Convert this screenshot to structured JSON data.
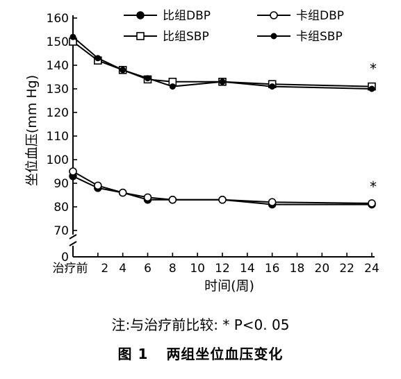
{
  "chart_data": {
    "type": "line",
    "xlabel": "时间(周)",
    "ylabel": "坐位血压(mm Hg)",
    "x_tick_labels": [
      "治疗前",
      "2",
      "4",
      "6",
      "8",
      "10",
      "12",
      "14",
      "16",
      "18",
      "20",
      "22",
      "24"
    ],
    "y_tick_labels": [
      "0",
      "70",
      "80",
      "90",
      "100",
      "110",
      "120",
      "130",
      "140",
      "150",
      "160"
    ],
    "ylim": [
      0,
      160
    ],
    "y_axis_break": [
      0,
      65
    ],
    "grid": false,
    "legend_position": "top-right",
    "x": [
      0,
      2,
      4,
      6,
      8,
      12,
      16,
      24
    ],
    "series": [
      {
        "name": "比组DBP",
        "marker": "filled-circle",
        "values": [
          93,
          88,
          86,
          83,
          83,
          83,
          81,
          81
        ]
      },
      {
        "name": "卡组DBP",
        "marker": "open-circle",
        "values": [
          95,
          89,
          86,
          84,
          83,
          83,
          82,
          81.5
        ]
      },
      {
        "name": "比组SBP",
        "marker": "open-square",
        "values": [
          150,
          142,
          138,
          134,
          133,
          133,
          132,
          131
        ]
      },
      {
        "name": "卡组SBP",
        "marker": "filled-dot",
        "values": [
          152,
          143,
          138,
          134.5,
          131,
          133,
          131,
          130
        ]
      }
    ],
    "annotations": [
      {
        "text": "*",
        "x": 24,
        "y": 137
      },
      {
        "text": "*",
        "x": 24,
        "y": 87
      }
    ]
  },
  "note": "注:与治疗前比较: * P<0. 05",
  "caption": {
    "label": "图 1",
    "title": "两组坐位血压变化"
  }
}
